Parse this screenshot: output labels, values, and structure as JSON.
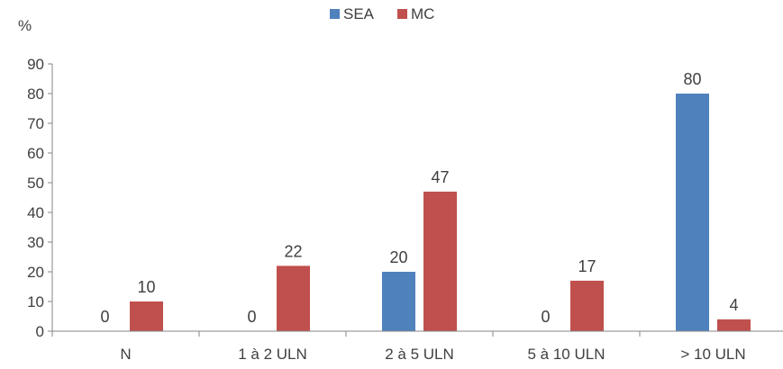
{
  "chart_data": {
    "type": "bar",
    "y_unit": "%",
    "categories": [
      "N",
      "1 à 2 ULN",
      "2 à 5 ULN",
      "5 à 10 ULN",
      "> 10 ULN"
    ],
    "series": [
      {
        "name": "SEA",
        "color": "#4f81bd",
        "values": [
          0,
          0,
          20,
          0,
          80
        ]
      },
      {
        "name": "MC",
        "color": "#c0504d",
        "values": [
          10,
          22,
          47,
          17,
          4
        ]
      }
    ],
    "ylim": [
      0,
      90
    ],
    "yticks": [
      0,
      10,
      20,
      30,
      40,
      50,
      60,
      70,
      80,
      90
    ],
    "legend_position": "top-center",
    "grid": false
  }
}
